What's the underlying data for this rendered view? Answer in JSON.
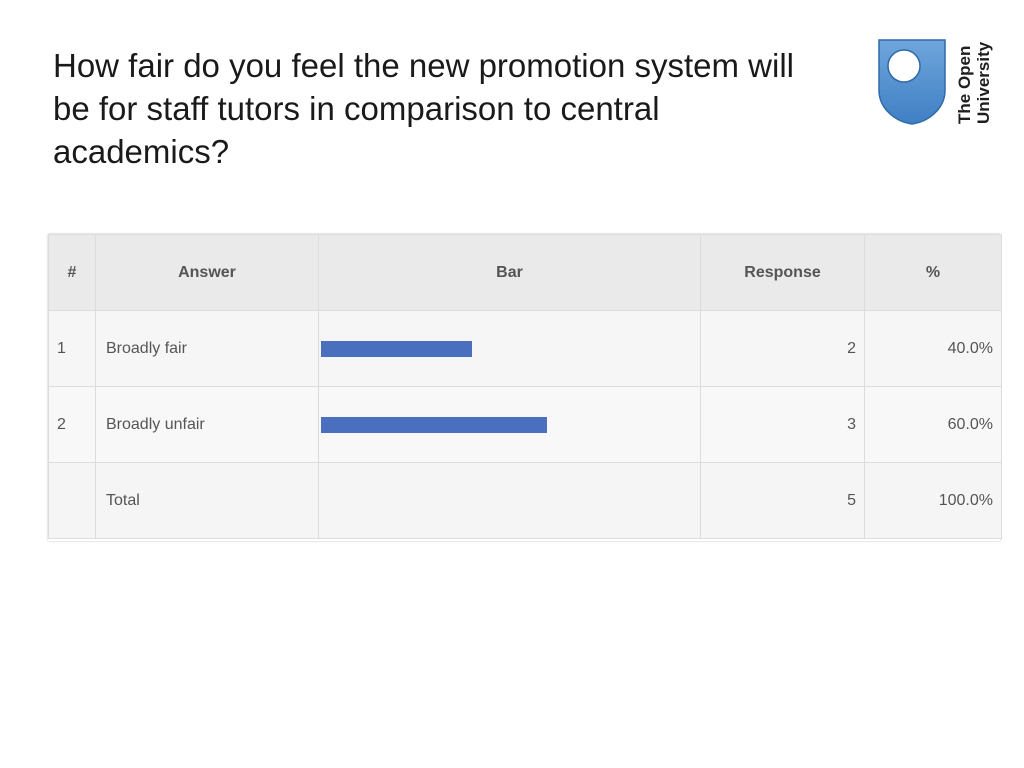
{
  "slide": {
    "title": "How fair do you feel the new promotion system will be for staff tutors in comparison to central academics?"
  },
  "logo": {
    "line1": "The Open",
    "line2": "University",
    "color": "#4a86c8"
  },
  "table": {
    "headers": {
      "index": "#",
      "answer": "Answer",
      "bar": "Bar",
      "response": "Response",
      "percent": "%"
    },
    "rows": [
      {
        "index": "1",
        "answer": "Broadly fair",
        "response": "2",
        "percent": "40.0%"
      },
      {
        "index": "2",
        "answer": "Broadly unfair",
        "response": "3",
        "percent": "60.0%"
      }
    ],
    "total": {
      "label": "Total",
      "response": "5",
      "percent": "100.0%"
    }
  },
  "chart_data": {
    "type": "bar",
    "orientation": "horizontal",
    "categories": [
      "Broadly fair",
      "Broadly unfair"
    ],
    "values": [
      40.0,
      60.0
    ],
    "unit": "%",
    "xlim": [
      0,
      100
    ],
    "bar_color": "#4a6fbf"
  }
}
